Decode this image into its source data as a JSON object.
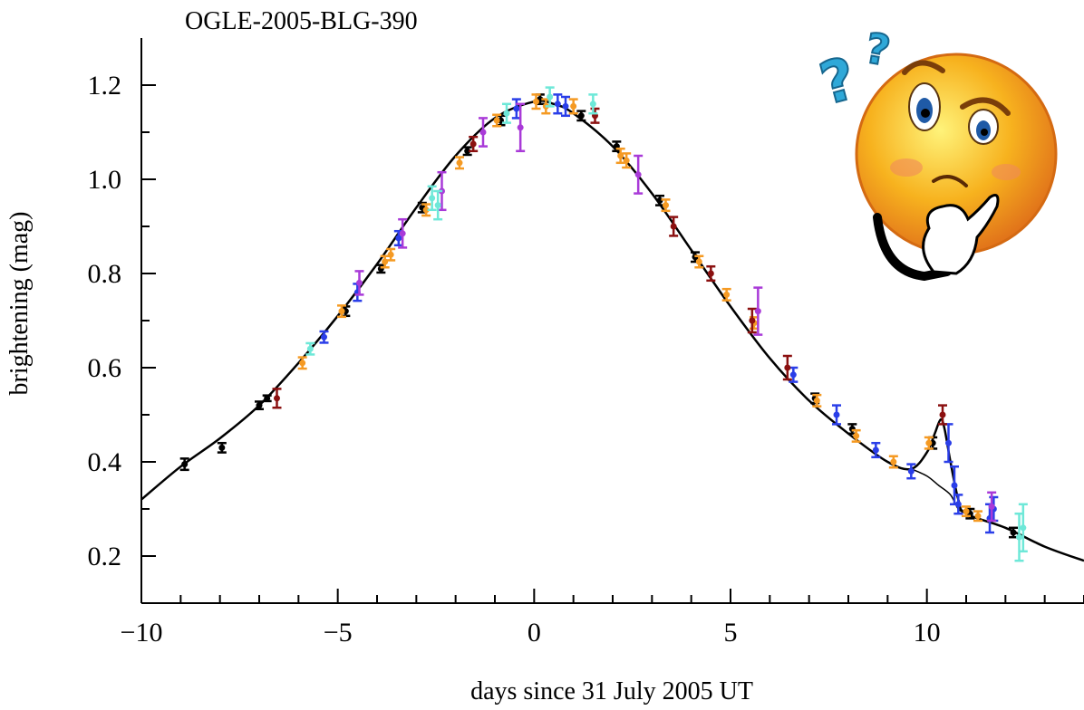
{
  "chart_data": {
    "type": "scatter",
    "title": "OGLE-2005-BLG-390",
    "xlabel": "days since 31 July 2005 UT",
    "ylabel": "brightening (mag)",
    "xlim": [
      -10,
      14
    ],
    "ylim": [
      0.1,
      1.3
    ],
    "x_ticks": [
      -10,
      -5,
      0,
      5,
      10
    ],
    "x_tick_labels": [
      "−10",
      "−5",
      "0",
      "5",
      "10"
    ],
    "y_ticks": [
      0.2,
      0.4,
      0.6,
      0.8,
      1.0,
      1.2
    ],
    "y_tick_labels": [
      "0.2",
      "0.4",
      "0.6",
      "0.8",
      "1.0",
      "1.2"
    ],
    "grid": false,
    "model_curve": {
      "x": [
        -10,
        -9,
        -8,
        -7,
        -6,
        -5,
        -4,
        -3,
        -2,
        -1,
        0,
        0.5,
        1,
        2,
        3,
        4,
        5,
        6,
        7,
        8,
        9,
        9.6,
        10.0,
        10.2,
        10.35,
        10.45,
        10.6,
        10.8,
        11,
        12,
        13,
        14
      ],
      "y": [
        0.32,
        0.39,
        0.45,
        0.52,
        0.61,
        0.71,
        0.82,
        0.94,
        1.05,
        1.13,
        1.165,
        1.16,
        1.14,
        1.07,
        0.97,
        0.85,
        0.73,
        0.62,
        0.53,
        0.46,
        0.4,
        0.385,
        0.42,
        0.46,
        0.49,
        0.47,
        0.4,
        0.32,
        0.29,
        0.26,
        0.22,
        0.19
      ]
    },
    "no_planet_curve": {
      "x": [
        9.6,
        10.0,
        10.3,
        10.6,
        10.8,
        11
      ],
      "y": [
        0.385,
        0.37,
        0.35,
        0.33,
        0.3,
        0.29
      ]
    },
    "series": [
      {
        "color": "#000000",
        "points": [
          {
            "x": -8.9,
            "y": 0.395,
            "e": 0.012
          },
          {
            "x": -7.95,
            "y": 0.43,
            "e": 0.01
          },
          {
            "x": -7.0,
            "y": 0.52,
            "e": 0.008
          },
          {
            "x": -6.8,
            "y": 0.535,
            "e": 0.006
          },
          {
            "x": -4.8,
            "y": 0.72,
            "e": 0.01
          },
          {
            "x": -3.9,
            "y": 0.81,
            "e": 0.008
          },
          {
            "x": -2.85,
            "y": 0.94,
            "e": 0.01
          },
          {
            "x": -1.7,
            "y": 1.06,
            "e": 0.008
          },
          {
            "x": -0.85,
            "y": 1.125,
            "e": 0.01
          },
          {
            "x": 0.15,
            "y": 1.17,
            "e": 0.01
          },
          {
            "x": 1.2,
            "y": 1.135,
            "e": 0.01
          },
          {
            "x": 2.1,
            "y": 1.07,
            "e": 0.01
          },
          {
            "x": 3.2,
            "y": 0.955,
            "e": 0.01
          },
          {
            "x": 4.1,
            "y": 0.835,
            "e": 0.01
          },
          {
            "x": 7.15,
            "y": 0.535,
            "e": 0.01
          },
          {
            "x": 8.1,
            "y": 0.47,
            "e": 0.01
          },
          {
            "x": 10.15,
            "y": 0.44,
            "e": 0.012
          },
          {
            "x": 11.1,
            "y": 0.29,
            "e": 0.01
          },
          {
            "x": 12.2,
            "y": 0.25,
            "e": 0.01
          }
        ]
      },
      {
        "color": "#f59a23",
        "points": [
          {
            "x": -5.9,
            "y": 0.61,
            "e": 0.012
          },
          {
            "x": -4.9,
            "y": 0.72,
            "e": 0.012
          },
          {
            "x": -3.8,
            "y": 0.825,
            "e": 0.012
          },
          {
            "x": -3.65,
            "y": 0.84,
            "e": 0.012
          },
          {
            "x": -2.75,
            "y": 0.935,
            "e": 0.012
          },
          {
            "x": -1.9,
            "y": 1.035,
            "e": 0.012
          },
          {
            "x": -0.95,
            "y": 1.125,
            "e": 0.012
          },
          {
            "x": 0.05,
            "y": 1.165,
            "e": 0.015
          },
          {
            "x": 0.3,
            "y": 1.155,
            "e": 0.015
          },
          {
            "x": 1.0,
            "y": 1.155,
            "e": 0.015
          },
          {
            "x": 2.2,
            "y": 1.05,
            "e": 0.015
          },
          {
            "x": 2.35,
            "y": 1.04,
            "e": 0.015
          },
          {
            "x": 3.35,
            "y": 0.945,
            "e": 0.012
          },
          {
            "x": 4.2,
            "y": 0.825,
            "e": 0.012
          },
          {
            "x": 4.9,
            "y": 0.755,
            "e": 0.012
          },
          {
            "x": 5.6,
            "y": 0.695,
            "e": 0.012
          },
          {
            "x": 7.2,
            "y": 0.53,
            "e": 0.012
          },
          {
            "x": 8.2,
            "y": 0.455,
            "e": 0.012
          },
          {
            "x": 9.15,
            "y": 0.4,
            "e": 0.012
          },
          {
            "x": 10.05,
            "y": 0.44,
            "e": 0.012
          },
          {
            "x": 11.0,
            "y": 0.295,
            "e": 0.01
          },
          {
            "x": 11.3,
            "y": 0.285,
            "e": 0.01
          }
        ]
      },
      {
        "color": "#2a3ee8",
        "points": [
          {
            "x": -5.35,
            "y": 0.665,
            "e": 0.012
          },
          {
            "x": -4.5,
            "y": 0.76,
            "e": 0.018
          },
          {
            "x": -3.45,
            "y": 0.875,
            "e": 0.015
          },
          {
            "x": -0.45,
            "y": 1.15,
            "e": 0.02
          },
          {
            "x": 0.6,
            "y": 1.16,
            "e": 0.02
          },
          {
            "x": 0.8,
            "y": 1.155,
            "e": 0.02
          },
          {
            "x": 6.6,
            "y": 0.585,
            "e": 0.015
          },
          {
            "x": 7.7,
            "y": 0.5,
            "e": 0.02
          },
          {
            "x": 8.7,
            "y": 0.425,
            "e": 0.015
          },
          {
            "x": 9.6,
            "y": 0.38,
            "e": 0.015
          },
          {
            "x": 10.55,
            "y": 0.44,
            "e": 0.04
          },
          {
            "x": 10.7,
            "y": 0.35,
            "e": 0.04
          },
          {
            "x": 10.8,
            "y": 0.31,
            "e": 0.02
          },
          {
            "x": 11.6,
            "y": 0.28,
            "e": 0.03
          },
          {
            "x": 11.7,
            "y": 0.3,
            "e": 0.025
          }
        ]
      },
      {
        "color": "#8b1010",
        "points": [
          {
            "x": -6.55,
            "y": 0.535,
            "e": 0.02
          },
          {
            "x": -1.55,
            "y": 1.075,
            "e": 0.015
          },
          {
            "x": 1.55,
            "y": 1.135,
            "e": 0.015
          },
          {
            "x": 3.55,
            "y": 0.9,
            "e": 0.02
          },
          {
            "x": 4.5,
            "y": 0.8,
            "e": 0.015
          },
          {
            "x": 5.55,
            "y": 0.7,
            "e": 0.025
          },
          {
            "x": 6.45,
            "y": 0.6,
            "e": 0.025
          },
          {
            "x": 10.4,
            "y": 0.5,
            "e": 0.02
          }
        ]
      },
      {
        "color": "#a93ad8",
        "points": [
          {
            "x": -4.45,
            "y": 0.78,
            "e": 0.025
          },
          {
            "x": -3.35,
            "y": 0.885,
            "e": 0.03
          },
          {
            "x": -2.35,
            "y": 0.975,
            "e": 0.04
          },
          {
            "x": -1.3,
            "y": 1.1,
            "e": 0.03
          },
          {
            "x": -0.35,
            "y": 1.11,
            "e": 0.05
          },
          {
            "x": 2.65,
            "y": 1.01,
            "e": 0.04
          },
          {
            "x": 5.7,
            "y": 0.72,
            "e": 0.05
          },
          {
            "x": 11.65,
            "y": 0.305,
            "e": 0.03
          }
        ]
      },
      {
        "color": "#6ee8d8",
        "points": [
          {
            "x": -5.7,
            "y": 0.64,
            "e": 0.012
          },
          {
            "x": -2.6,
            "y": 0.96,
            "e": 0.025
          },
          {
            "x": -2.45,
            "y": 0.945,
            "e": 0.03
          },
          {
            "x": -0.7,
            "y": 1.14,
            "e": 0.02
          },
          {
            "x": 0.4,
            "y": 1.175,
            "e": 0.02
          },
          {
            "x": 1.5,
            "y": 1.16,
            "e": 0.02
          },
          {
            "x": 12.35,
            "y": 0.24,
            "e": 0.05
          },
          {
            "x": 12.45,
            "y": 0.26,
            "e": 0.05
          }
        ]
      }
    ]
  },
  "illustration": {
    "name": "thinking face with question marks",
    "text": "??",
    "face_color": "#f7b21e",
    "question_color": "#2fa8d8"
  }
}
